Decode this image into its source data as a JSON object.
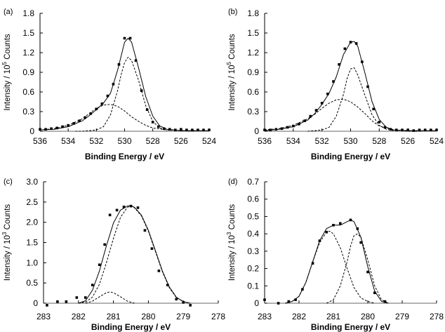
{
  "chart_data": [
    {
      "type": "line",
      "panel_label": "(a)",
      "xlabel": "Binding Energy / eV",
      "ylabel_prefix": "Intensity / 10",
      "ylabel_exp": "5",
      "ylabel_suffix": " Counts",
      "xlim": [
        536,
        524
      ],
      "ylim": [
        0,
        1.8
      ],
      "x_ticks": [
        536,
        534,
        532,
        530,
        528,
        526,
        524
      ],
      "y_ticks": [
        0,
        0.3,
        0.6,
        0.9,
        1.2,
        1.5,
        1.8
      ],
      "y_tick_labels": [
        "0",
        "0.3",
        "0.6",
        "0.9",
        "1.2",
        "1.5",
        "1.8"
      ],
      "grid": false,
      "series": [
        {
          "style": "markers",
          "x": [
            536.0,
            535.6,
            535.2,
            534.8,
            534.4,
            534.0,
            533.6,
            533.2,
            532.8,
            532.4,
            532.0,
            531.6,
            531.2,
            530.8,
            530.4,
            530.0,
            529.6,
            529.2,
            528.8,
            528.4,
            528.0,
            527.6,
            527.2,
            526.8,
            526.4,
            526.0,
            525.6,
            525.2,
            524.8,
            524.4,
            524.0
          ],
          "y": [
            0.03,
            0.03,
            0.04,
            0.05,
            0.07,
            0.09,
            0.12,
            0.16,
            0.21,
            0.27,
            0.34,
            0.42,
            0.54,
            0.72,
            1.02,
            1.42,
            1.42,
            1.08,
            0.62,
            0.33,
            0.14,
            0.07,
            0.04,
            0.03,
            0.02,
            0.03,
            0.02,
            0.02,
            0.02,
            0.02,
            0.02
          ]
        },
        {
          "style": "solid",
          "x": [
            536.0,
            535.0,
            534.0,
            533.0,
            532.5,
            532.0,
            531.5,
            531.0,
            530.5,
            530.0,
            529.75,
            529.5,
            529.0,
            528.5,
            528.0,
            527.5,
            527.0,
            526.0,
            525.0,
            524.0
          ],
          "y": [
            0.02,
            0.03,
            0.07,
            0.16,
            0.24,
            0.33,
            0.43,
            0.58,
            0.93,
            1.36,
            1.42,
            1.36,
            0.96,
            0.53,
            0.23,
            0.08,
            0.03,
            0.01,
            0.01,
            0.01
          ]
        },
        {
          "style": "dashed",
          "x": [
            533.5,
            533.0,
            532.5,
            532.0,
            531.5,
            531.0,
            530.5,
            530.25,
            530.0,
            529.75,
            529.5,
            529.0,
            528.5,
            528.0,
            527.5,
            527.0
          ],
          "y": [
            0.0,
            0.0,
            0.01,
            0.02,
            0.07,
            0.25,
            0.62,
            0.86,
            1.05,
            1.13,
            1.08,
            0.77,
            0.39,
            0.15,
            0.05,
            0.01
          ]
        },
        {
          "style": "dashed",
          "x": [
            536.0,
            535.0,
            534.0,
            533.0,
            532.5,
            532.0,
            531.5,
            531.0,
            530.5,
            530.0,
            529.5,
            529.0,
            528.5,
            528.0,
            527.0,
            526.0,
            525.0
          ],
          "y": [
            0.02,
            0.04,
            0.09,
            0.19,
            0.27,
            0.35,
            0.4,
            0.41,
            0.38,
            0.31,
            0.22,
            0.15,
            0.09,
            0.05,
            0.02,
            0.01,
            0.0
          ]
        }
      ]
    },
    {
      "type": "line",
      "panel_label": "(b)",
      "xlabel": "Binding Energy / eV",
      "ylabel_prefix": "Intensity / 10",
      "ylabel_exp": "5",
      "ylabel_suffix": " Counts",
      "xlim": [
        536,
        524
      ],
      "ylim": [
        0,
        1.8
      ],
      "x_ticks": [
        536,
        534,
        532,
        530,
        528,
        526,
        524
      ],
      "y_ticks": [
        0,
        0.3,
        0.6,
        0.9,
        1.2,
        1.5,
        1.8
      ],
      "y_tick_labels": [
        "0",
        "0.3",
        "0.6",
        "0.9",
        "1.2",
        "1.5",
        "1.8"
      ],
      "grid": false,
      "series": [
        {
          "style": "markers",
          "x": [
            536.0,
            535.6,
            535.2,
            534.8,
            534.4,
            534.0,
            533.6,
            533.2,
            532.8,
            532.4,
            532.0,
            531.6,
            531.2,
            530.8,
            530.4,
            530.0,
            529.6,
            529.2,
            528.8,
            528.4,
            528.0,
            527.6,
            527.2,
            526.8,
            526.4,
            526.0,
            525.6,
            525.2,
            524.8,
            524.4,
            524.0
          ],
          "y": [
            0.02,
            0.02,
            0.03,
            0.04,
            0.06,
            0.08,
            0.11,
            0.16,
            0.23,
            0.32,
            0.43,
            0.57,
            0.76,
            1.02,
            1.26,
            1.36,
            1.34,
            1.06,
            0.68,
            0.34,
            0.14,
            0.06,
            0.03,
            0.02,
            0.02,
            0.02,
            0.01,
            0.02,
            0.02,
            0.02,
            0.02
          ]
        },
        {
          "style": "solid",
          "x": [
            536.0,
            535.0,
            534.0,
            533.0,
            532.5,
            532.0,
            531.5,
            531.0,
            530.5,
            530.0,
            529.75,
            529.5,
            529.0,
            528.5,
            528.0,
            527.5,
            527.0,
            526.0,
            525.0,
            524.0
          ],
          "y": [
            0.01,
            0.03,
            0.07,
            0.17,
            0.27,
            0.41,
            0.58,
            0.83,
            1.17,
            1.36,
            1.37,
            1.3,
            0.89,
            0.45,
            0.18,
            0.06,
            0.02,
            0.01,
            0.01,
            0.01
          ]
        },
        {
          "style": "dashed",
          "x": [
            533.0,
            532.5,
            532.0,
            531.5,
            531.0,
            530.5,
            530.25,
            530.0,
            529.75,
            529.5,
            529.0,
            528.5,
            528.0,
            527.5,
            527.0
          ],
          "y": [
            0.0,
            0.01,
            0.02,
            0.06,
            0.23,
            0.56,
            0.8,
            0.95,
            0.97,
            0.86,
            0.55,
            0.25,
            0.09,
            0.03,
            0.01
          ]
        },
        {
          "style": "dashed",
          "x": [
            536.0,
            535.0,
            534.0,
            533.0,
            532.5,
            532.0,
            531.5,
            531.0,
            530.5,
            530.0,
            529.5,
            529.0,
            528.5,
            528.0,
            527.0,
            526.0,
            525.0
          ],
          "y": [
            0.02,
            0.04,
            0.09,
            0.19,
            0.26,
            0.35,
            0.43,
            0.48,
            0.49,
            0.45,
            0.37,
            0.27,
            0.16,
            0.08,
            0.02,
            0.0,
            0.0
          ]
        }
      ]
    },
    {
      "type": "line",
      "panel_label": "(c)",
      "xlabel": "Binding Energy / eV",
      "ylabel_prefix": "Intensity / 10",
      "ylabel_exp": "3",
      "ylabel_suffix": " Counts",
      "xlim": [
        283,
        278
      ],
      "ylim": [
        0,
        3.0
      ],
      "x_ticks": [
        283,
        282,
        281,
        280,
        279,
        278
      ],
      "y_ticks": [
        0,
        0.5,
        1.0,
        1.5,
        2.0,
        2.5,
        3.0
      ],
      "y_tick_labels": [
        "0",
        "0.5",
        "1.0",
        "1.5",
        "2.0",
        "2.5",
        "3.0"
      ],
      "grid": false,
      "series": [
        {
          "style": "markers",
          "x": [
            282.9,
            282.6,
            282.35,
            282.05,
            281.8,
            281.6,
            281.4,
            281.25,
            281.1,
            280.9,
            280.7,
            280.5,
            280.3,
            280.1,
            279.9,
            279.7,
            279.45,
            279.2,
            279.0,
            278.8
          ],
          "y": [
            -0.05,
            0.04,
            0.04,
            0.14,
            0.14,
            0.45,
            0.95,
            1.45,
            2.18,
            2.3,
            2.38,
            2.4,
            2.36,
            1.8,
            1.35,
            0.8,
            0.45,
            0.1,
            0.02,
            -0.05
          ]
        },
        {
          "style": "solid",
          "x": [
            282.0,
            281.8,
            281.6,
            281.4,
            281.2,
            281.0,
            280.8,
            280.6,
            280.5,
            280.4,
            280.2,
            280.0,
            279.8,
            279.6,
            279.4,
            279.2,
            279.0,
            278.8
          ],
          "y": [
            0.0,
            0.06,
            0.32,
            0.8,
            1.42,
            1.98,
            2.3,
            2.4,
            2.41,
            2.37,
            2.18,
            1.8,
            1.3,
            0.8,
            0.4,
            0.15,
            0.04,
            0.0
          ]
        },
        {
          "style": "dashed",
          "x": [
            282.0,
            281.8,
            281.6,
            281.4,
            281.2,
            281.0,
            280.8,
            280.6,
            280.5,
            280.4,
            280.2,
            280.0,
            279.8,
            279.6,
            279.4,
            279.2,
            279.0,
            278.8
          ],
          "y": [
            0.0,
            0.03,
            0.15,
            0.47,
            1.0,
            1.6,
            2.12,
            2.37,
            2.4,
            2.36,
            2.16,
            1.78,
            1.28,
            0.78,
            0.38,
            0.14,
            0.04,
            0.0
          ]
        },
        {
          "style": "dashed",
          "x": [
            281.8,
            281.6,
            281.4,
            281.2,
            281.1,
            281.0,
            280.8,
            280.6,
            280.4
          ],
          "y": [
            0.0,
            0.05,
            0.16,
            0.26,
            0.28,
            0.26,
            0.16,
            0.05,
            0.0
          ]
        }
      ]
    },
    {
      "type": "line",
      "panel_label": "(d)",
      "xlabel": "Binding Energy / eV",
      "ylabel_prefix": "Intensity / 10",
      "ylabel_exp": "3",
      "ylabel_suffix": " Counts",
      "xlim": [
        283,
        278
      ],
      "ylim": [
        0,
        0.7
      ],
      "x_ticks": [
        283,
        282,
        281,
        280,
        279,
        278
      ],
      "y_ticks": [
        0,
        0.1,
        0.2,
        0.3,
        0.4,
        0.5,
        0.6,
        0.7
      ],
      "y_tick_labels": [
        "0",
        "0.1",
        "0.2",
        "0.3",
        "0.4",
        "0.5",
        "0.6",
        "0.7"
      ],
      "grid": false,
      "series": [
        {
          "style": "markers",
          "x": [
            283.0,
            282.6,
            282.3,
            282.1,
            281.9,
            281.6,
            281.4,
            281.2,
            281.0,
            280.8,
            280.5,
            280.3,
            280.2,
            280.0,
            279.8,
            279.5
          ],
          "y": [
            0.02,
            0.0,
            0.01,
            0.02,
            0.08,
            0.23,
            0.36,
            0.41,
            0.45,
            0.46,
            0.48,
            0.43,
            0.35,
            0.18,
            0.06,
            0.01
          ]
        },
        {
          "style": "solid",
          "x": [
            282.4,
            282.2,
            282.0,
            281.8,
            281.6,
            281.4,
            281.2,
            281.0,
            280.8,
            280.6,
            280.5,
            280.4,
            280.2,
            280.0,
            279.8,
            279.6,
            279.4
          ],
          "y": [
            0.0,
            0.01,
            0.04,
            0.12,
            0.24,
            0.36,
            0.43,
            0.45,
            0.45,
            0.47,
            0.48,
            0.47,
            0.38,
            0.21,
            0.07,
            0.01,
            0.0
          ]
        },
        {
          "style": "dashed",
          "x": [
            282.4,
            282.2,
            282.0,
            281.8,
            281.6,
            281.4,
            281.2,
            281.1,
            281.0,
            280.8,
            280.6,
            280.4,
            280.2,
            280.0,
            279.8
          ],
          "y": [
            0.0,
            0.01,
            0.04,
            0.12,
            0.24,
            0.35,
            0.41,
            0.415,
            0.4,
            0.32,
            0.2,
            0.09,
            0.03,
            0.01,
            0.0
          ]
        },
        {
          "style": "dashed",
          "x": [
            281.2,
            281.0,
            280.8,
            280.6,
            280.5,
            280.4,
            280.3,
            280.2,
            280.0,
            279.8,
            279.6,
            279.4
          ],
          "y": [
            0.0,
            0.02,
            0.1,
            0.24,
            0.33,
            0.39,
            0.4,
            0.38,
            0.25,
            0.1,
            0.02,
            0.0
          ]
        }
      ]
    }
  ]
}
